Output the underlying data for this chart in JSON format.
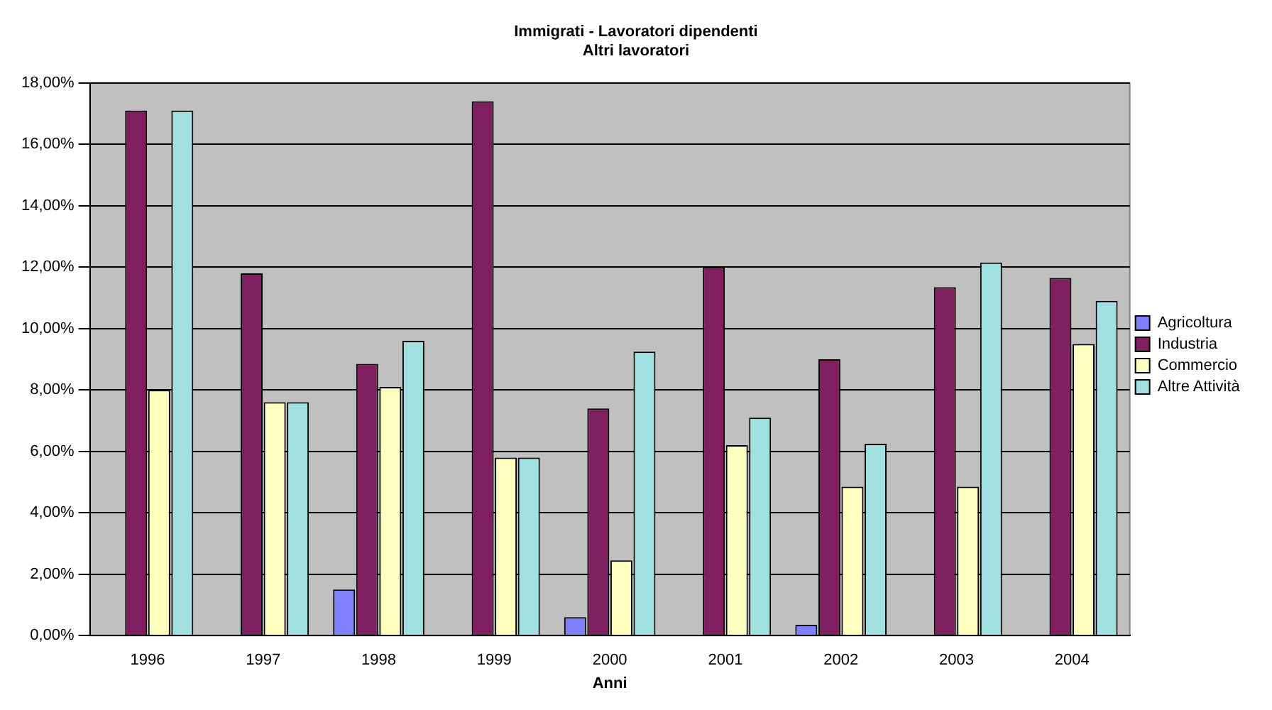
{
  "chart_data": {
    "type": "bar",
    "title": "Immigrati - Lavoratori dipendenti",
    "subtitle": "Altri lavoratori",
    "xlabel": "Anni",
    "categories": [
      "1996",
      "1997",
      "1998",
      "1999",
      "2000",
      "2001",
      "2002",
      "2003",
      "2004"
    ],
    "series": [
      {
        "name": "Agricoltura",
        "color": "#8080ff",
        "values": [
          0,
          0,
          1.5,
          0,
          0.6,
          0,
          0.35,
          0,
          0
        ]
      },
      {
        "name": "Industria",
        "color": "#801f5f",
        "values": [
          17.1,
          11.8,
          8.85,
          17.4,
          7.4,
          12.0,
          9.0,
          11.35,
          11.65
        ]
      },
      {
        "name": "Commercio",
        "color": "#ffffc0",
        "values": [
          8.0,
          7.6,
          8.1,
          5.8,
          2.45,
          6.2,
          4.85,
          4.85,
          9.5
        ]
      },
      {
        "name": "Altre Attività",
        "color": "#a0e0e0",
        "values": [
          17.1,
          7.6,
          9.6,
          5.8,
          9.25,
          7.1,
          6.25,
          12.15,
          10.9
        ]
      }
    ],
    "ylim": [
      0,
      18
    ],
    "yticks": [
      {
        "value": 0,
        "label": "0,00%"
      },
      {
        "value": 2,
        "label": "2,00%"
      },
      {
        "value": 4,
        "label": "4,00%"
      },
      {
        "value": 6,
        "label": "6,00%"
      },
      {
        "value": 8,
        "label": "8,00%"
      },
      {
        "value": 10,
        "label": "10,00%"
      },
      {
        "value": 12,
        "label": "12,00%"
      },
      {
        "value": 14,
        "label": "14,00%"
      },
      {
        "value": 16,
        "label": "16,00%"
      },
      {
        "value": 18,
        "label": "18,00%"
      }
    ],
    "grid": "y",
    "legend": "right"
  }
}
